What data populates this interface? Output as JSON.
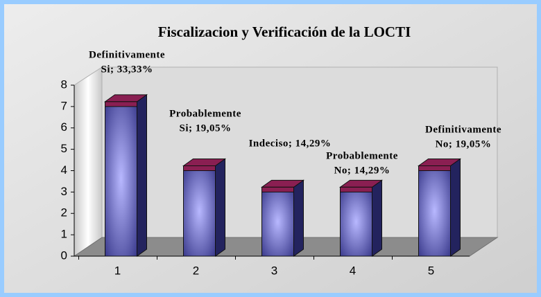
{
  "chart_data": {
    "type": "bar3d",
    "title": "Fiscalizacion y Verificación de la LOCTI",
    "categories": [
      "1",
      "2",
      "3",
      "4",
      "5"
    ],
    "values": [
      7,
      4,
      3,
      3,
      4
    ],
    "annotations": [
      [
        "Definitivamente",
        "Si; 33,33%"
      ],
      [
        "Probablemente",
        "Si; 19,05%"
      ],
      [
        "Indeciso; 14,29%"
      ],
      [
        "Probablemente",
        "No; 14,29%"
      ],
      [
        "Definitivamente",
        "No; 19,05%"
      ]
    ],
    "color": "#6f6fd0",
    "top_color": "#8a1f52",
    "side_color": "#23235e",
    "ylim": [
      0,
      8
    ],
    "yticks": [
      0,
      1,
      2,
      3,
      4,
      5,
      6,
      7,
      8
    ],
    "grid": false
  }
}
